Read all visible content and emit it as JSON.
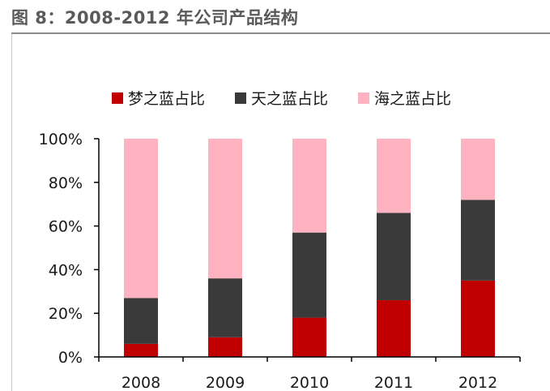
{
  "header": {
    "title": "图 8：2008-2012 年公司产品结构"
  },
  "chart_data": {
    "type": "bar",
    "stacked": true,
    "categories": [
      "2008",
      "2009",
      "2010",
      "2011",
      "2012"
    ],
    "series": [
      {
        "name": "梦之蓝占比",
        "color": "#c00000",
        "values": [
          6,
          9,
          18,
          26,
          35
        ]
      },
      {
        "name": "天之蓝占比",
        "color": "#3a3a3a",
        "values": [
          21,
          27,
          39,
          40,
          37
        ]
      },
      {
        "name": "海之蓝占比",
        "color": "#ffb3c1",
        "values": [
          73,
          64,
          43,
          34,
          28
        ]
      }
    ],
    "yticks": [
      "0%",
      "20%",
      "40%",
      "60%",
      "80%",
      "100%"
    ],
    "ylim": [
      0,
      100
    ],
    "legend_position": "top",
    "grid": false
  }
}
